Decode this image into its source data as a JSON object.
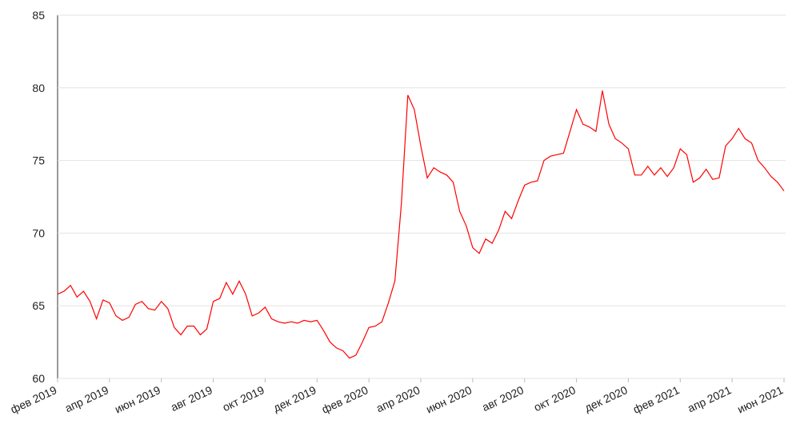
{
  "chart_data": {
    "type": "line",
    "categories": [
      "фев 2019",
      null,
      null,
      null,
      null,
      null,
      null,
      null,
      "апр 2019",
      null,
      null,
      null,
      null,
      null,
      null,
      null,
      "июн 2019",
      null,
      null,
      null,
      null,
      null,
      null,
      null,
      "авг 2019",
      null,
      null,
      null,
      null,
      null,
      null,
      null,
      "окт 2019",
      null,
      null,
      null,
      null,
      null,
      null,
      null,
      "дек 2019",
      null,
      null,
      null,
      null,
      null,
      null,
      null,
      "фев 2020",
      null,
      null,
      null,
      null,
      null,
      null,
      null,
      "апр 2020",
      null,
      null,
      null,
      null,
      null,
      null,
      null,
      "июн 2020",
      null,
      null,
      null,
      null,
      null,
      null,
      null,
      "авг 2020",
      null,
      null,
      null,
      null,
      null,
      null,
      null,
      "окт 2020",
      null,
      null,
      null,
      null,
      null,
      null,
      null,
      "дек 2020",
      null,
      null,
      null,
      null,
      null,
      null,
      null,
      "фев 2021",
      null,
      null,
      null,
      null,
      null,
      null,
      null,
      "апр 2021",
      null,
      null,
      null,
      null,
      null,
      null,
      null,
      "июн 2021"
    ],
    "series": [
      {
        "color": "#ff0000",
        "values": [
          65.8,
          66.0,
          66.4,
          65.6,
          66.0,
          65.3,
          64.1,
          65.4,
          65.2,
          64.3,
          64.0,
          64.2,
          65.1,
          65.3,
          64.8,
          64.7,
          65.3,
          64.8,
          63.5,
          63.0,
          63.6,
          63.6,
          63.0,
          63.4,
          65.3,
          65.5,
          66.6,
          65.8,
          66.7,
          65.8,
          64.3,
          64.5,
          64.9,
          64.1,
          63.9,
          63.8,
          63.9,
          63.8,
          64.0,
          63.9,
          64.0,
          63.3,
          62.5,
          62.1,
          61.9,
          61.4,
          61.6,
          62.5,
          63.5,
          63.6,
          63.9,
          65.2,
          66.7,
          72.0,
          79.5,
          78.5,
          76.0,
          73.8,
          74.5,
          74.2,
          74.0,
          73.5,
          71.5,
          70.5,
          69.0,
          68.6,
          69.6,
          69.3,
          70.2,
          71.5,
          71.0,
          72.2,
          73.3,
          73.5,
          73.6,
          75.0,
          75.3,
          75.4,
          75.5,
          77.0,
          78.5,
          77.5,
          77.3,
          77.0,
          79.8,
          77.5,
          76.5,
          76.2,
          75.8,
          74.0,
          74.0,
          74.6,
          74.0,
          74.5,
          73.9,
          74.5,
          75.8,
          75.4,
          73.5,
          73.8,
          74.4,
          73.7,
          73.8,
          76.0,
          76.5,
          77.2,
          76.5,
          76.2,
          75.0,
          74.5,
          73.9,
          73.5,
          72.9
        ]
      }
    ],
    "ylim": [
      60,
      85
    ],
    "yticks": [
      60,
      65,
      70,
      75,
      80,
      85
    ],
    "grid": true
  }
}
